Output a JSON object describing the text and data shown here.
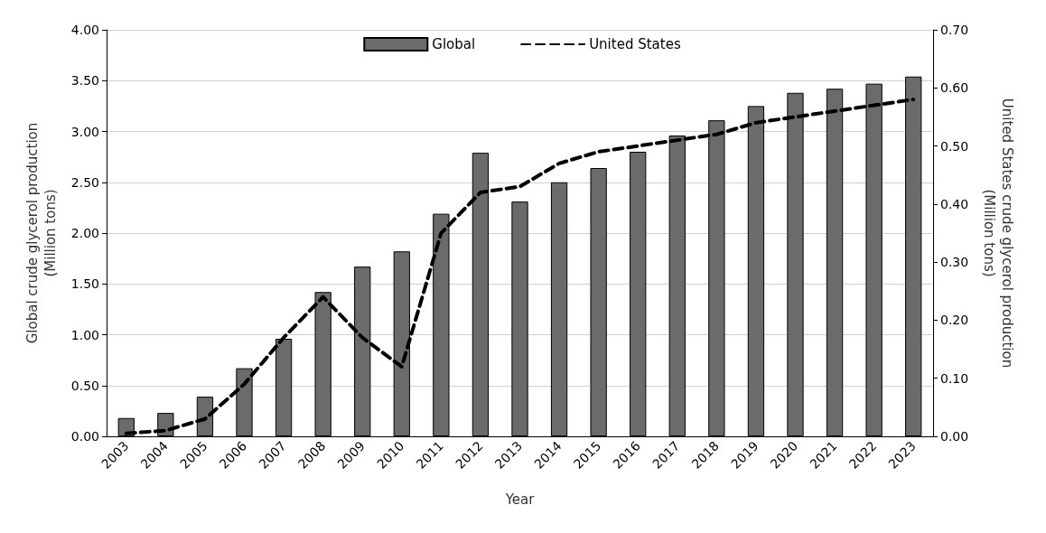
{
  "chart_data": {
    "type": "bar",
    "xlabel": "Year",
    "ylabel": "Global crude glycerol production\n(Million tons)",
    "y2label": "United States crude glycerol production\n(Million tons)",
    "categories": [
      "2003",
      "2004",
      "2005",
      "2006",
      "2007",
      "2008",
      "2009",
      "2010",
      "2011",
      "2012",
      "2013",
      "2014",
      "2015",
      "2016",
      "2017",
      "2018",
      "2019",
      "2020",
      "2021",
      "2022",
      "2023"
    ],
    "series": [
      {
        "name": "Global",
        "color": "#6b6b6b",
        "values": [
          0.18,
          0.23,
          0.39,
          0.67,
          0.96,
          1.42,
          1.67,
          1.82,
          2.19,
          2.79,
          2.31,
          2.5,
          2.64,
          2.8,
          2.96,
          3.11,
          3.25,
          3.38,
          3.42,
          3.47,
          3.54
        ]
      },
      {
        "name": "United States",
        "type": "line",
        "axis": "y2",
        "color": "#000000",
        "line_style": "dashed",
        "marker": "none",
        "values": [
          0.005,
          0.01,
          0.03,
          0.09,
          0.17,
          0.24,
          0.17,
          0.12,
          0.35,
          0.42,
          0.43,
          0.47,
          0.49,
          0.5,
          0.51,
          0.52,
          0.54,
          0.55,
          0.56,
          0.57,
          0.58
        ]
      }
    ],
    "ylim": [
      0,
      4
    ],
    "yticks": [
      {
        "value": 0,
        "label": "0.00"
      },
      {
        "value": 0.5,
        "label": "0.50"
      },
      {
        "value": 1,
        "label": "1.00"
      },
      {
        "value": 1.5,
        "label": "1.50"
      },
      {
        "value": 2,
        "label": "2.00"
      },
      {
        "value": 2.5,
        "label": "2.50"
      },
      {
        "value": 3,
        "label": "3.00"
      },
      {
        "value": 3.5,
        "label": "3.50"
      },
      {
        "value": 4,
        "label": "4.00"
      }
    ],
    "y2lim": [
      0,
      0.7
    ],
    "y2ticks": [
      {
        "value": 0,
        "label": "0.00"
      },
      {
        "value": 0.1,
        "label": "0.10"
      },
      {
        "value": 0.2,
        "label": "0.20"
      },
      {
        "value": 0.3,
        "label": "0.30"
      },
      {
        "value": 0.4,
        "label": "0.40"
      },
      {
        "value": 0.5,
        "label": "0.50"
      },
      {
        "value": 0.6,
        "label": "0.60"
      },
      {
        "value": 0.7,
        "label": "0.70"
      }
    ],
    "grid": "y",
    "legend": "top"
  }
}
